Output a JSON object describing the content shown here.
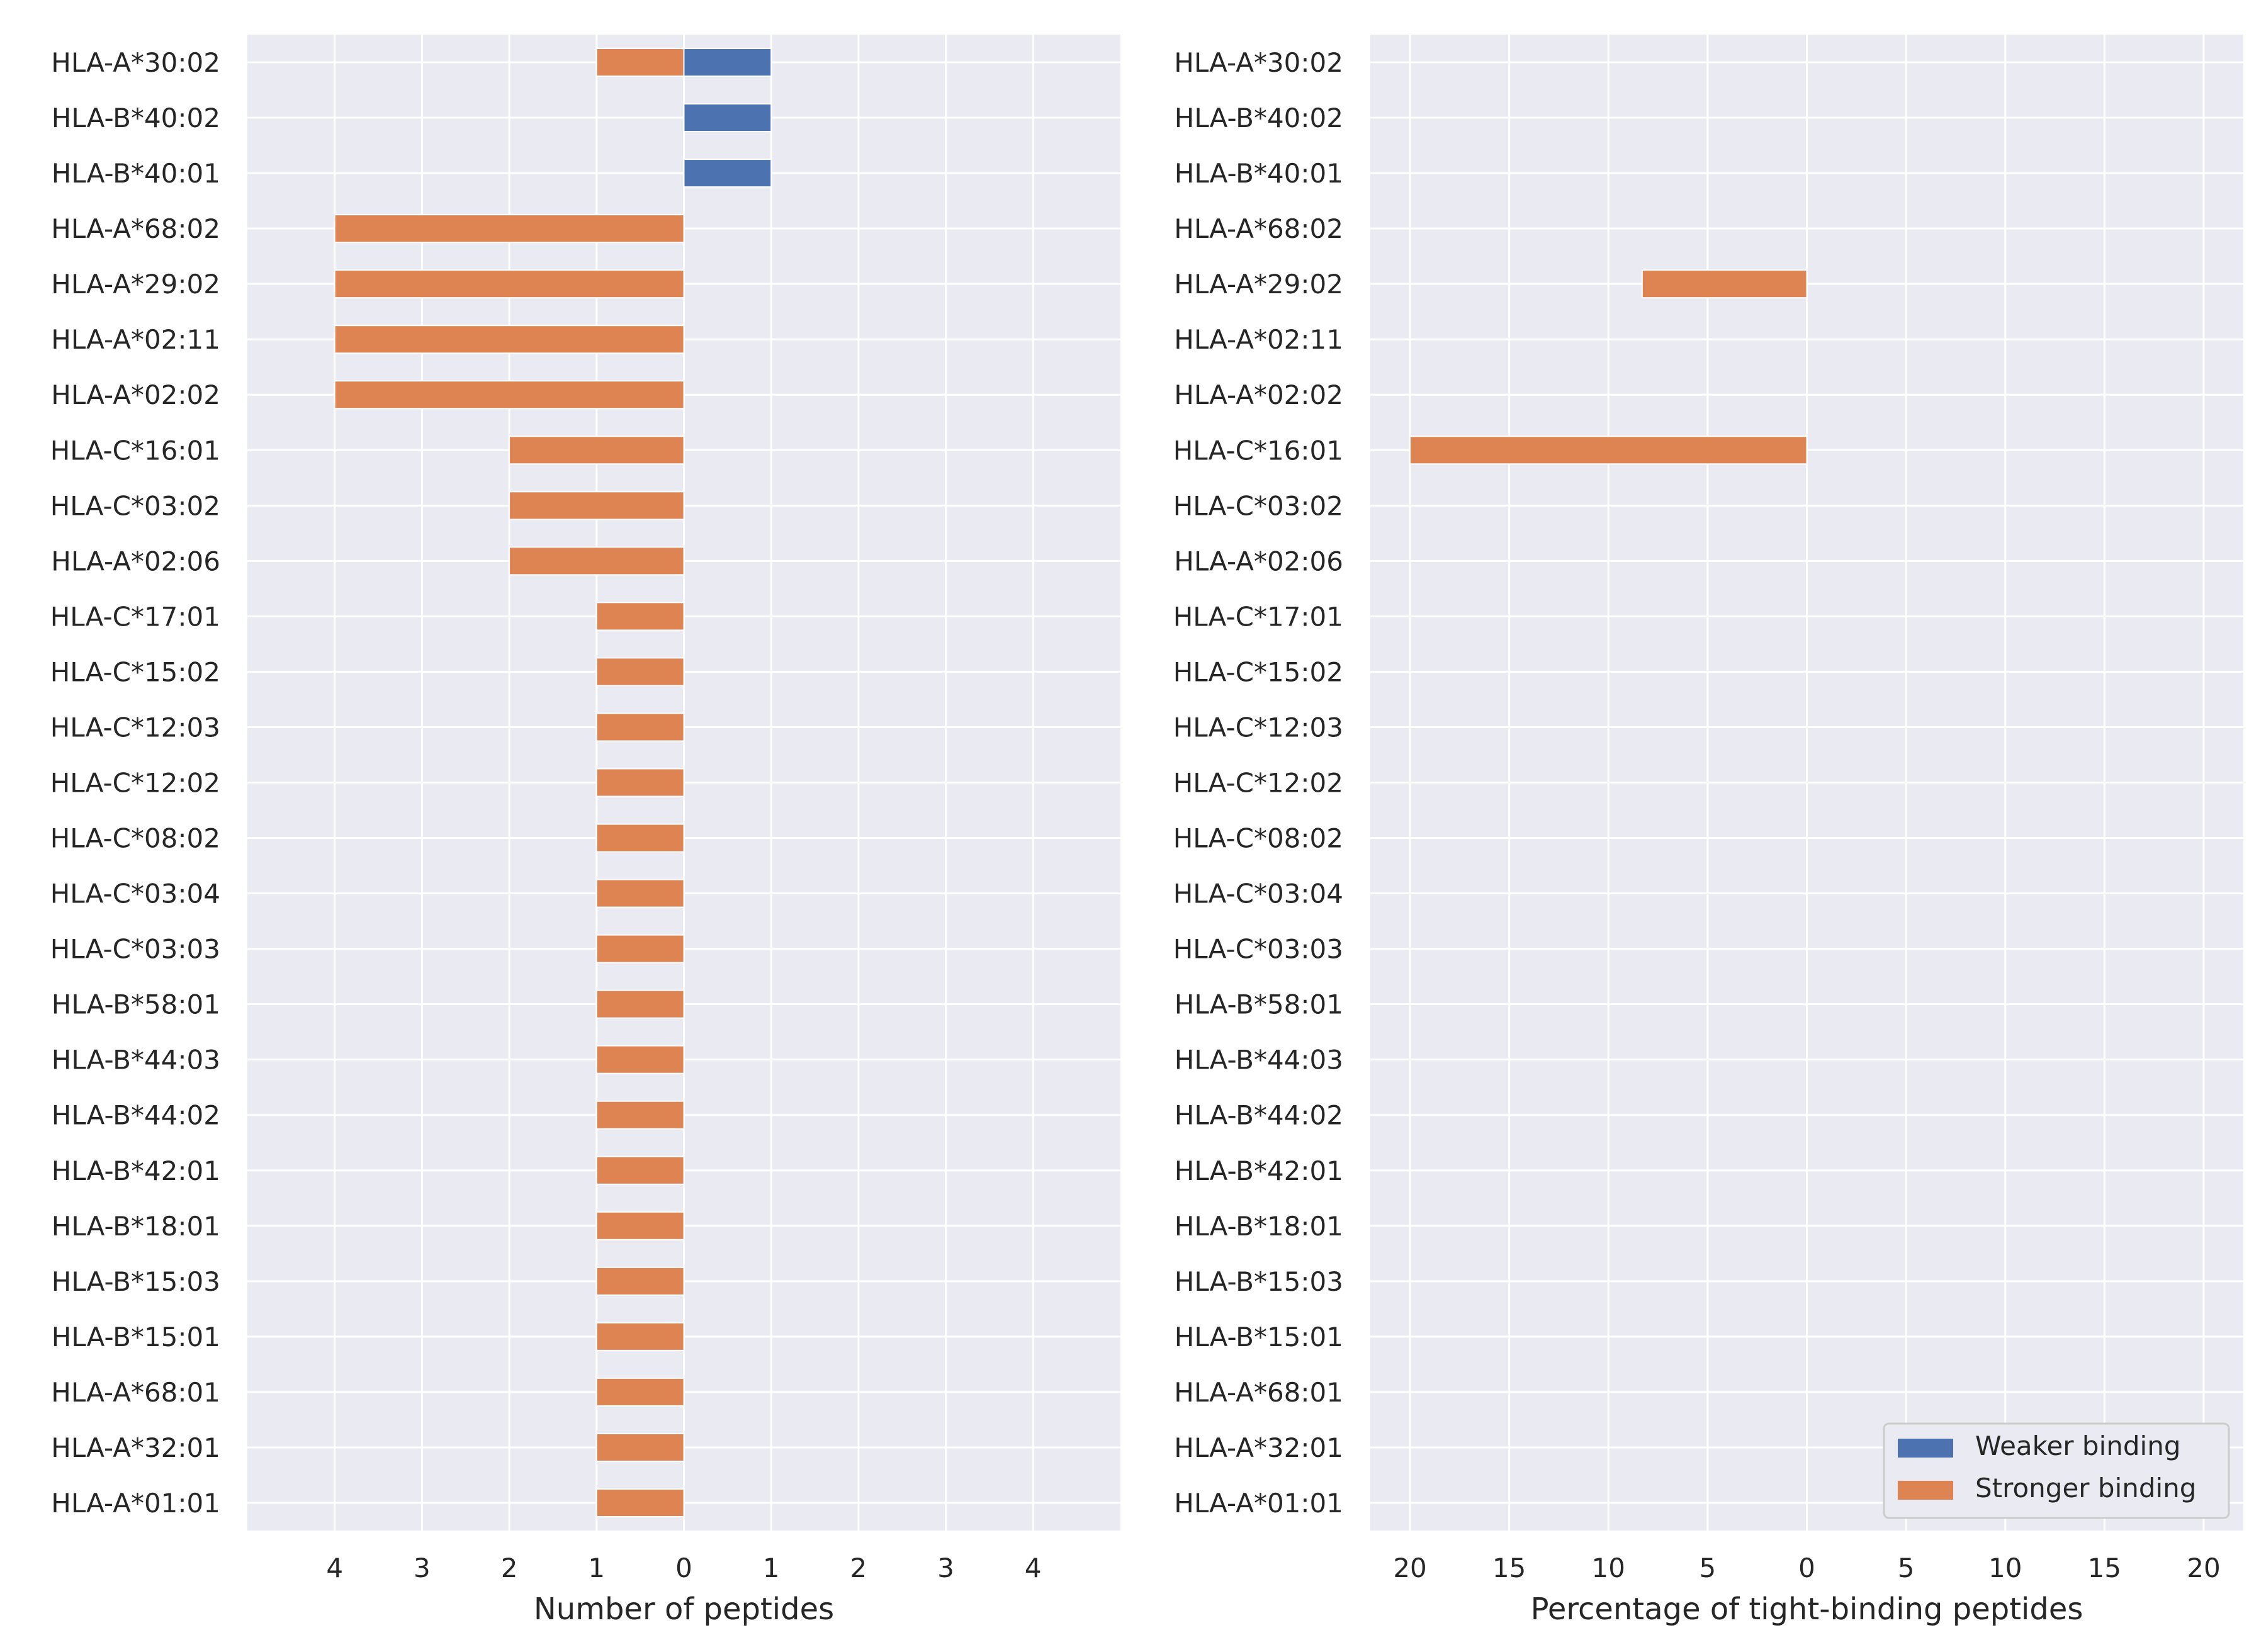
{
  "colors": {
    "weaker": "#4c72b0",
    "stronger": "#dd8452",
    "panel_bg": "#eaeaf2",
    "grid": "#ffffff",
    "text": "#262626"
  },
  "legend": {
    "position": "lower-right of right panel",
    "items": [
      "Weaker binding",
      "Stronger binding"
    ]
  },
  "chart_data": [
    {
      "type": "bar",
      "orientation": "horizontal, diverging",
      "xlabel": "Number of peptides",
      "xlim": [
        -5,
        5
      ],
      "x_ticks": [
        -4,
        -3,
        -2,
        -1,
        0,
        1,
        2,
        3,
        4
      ],
      "x_tick_labels": [
        "4",
        "3",
        "2",
        "1",
        "0",
        "1",
        "2",
        "3",
        "4"
      ],
      "grid": true,
      "categories": [
        "HLA-A*30:02",
        "HLA-B*40:02",
        "HLA-B*40:01",
        "HLA-A*68:02",
        "HLA-A*29:02",
        "HLA-A*02:11",
        "HLA-A*02:02",
        "HLA-C*16:01",
        "HLA-C*03:02",
        "HLA-A*02:06",
        "HLA-C*17:01",
        "HLA-C*15:02",
        "HLA-C*12:03",
        "HLA-C*12:02",
        "HLA-C*08:02",
        "HLA-C*03:04",
        "HLA-C*03:03",
        "HLA-B*58:01",
        "HLA-B*44:03",
        "HLA-B*44:02",
        "HLA-B*42:01",
        "HLA-B*18:01",
        "HLA-B*15:03",
        "HLA-B*15:01",
        "HLA-A*68:01",
        "HLA-A*32:01",
        "HLA-A*01:01"
      ],
      "series": [
        {
          "name": "Weaker binding",
          "direction": "right",
          "values": [
            1,
            1,
            1,
            0,
            0,
            0,
            0,
            0,
            0,
            0,
            0,
            0,
            0,
            0,
            0,
            0,
            0,
            0,
            0,
            0,
            0,
            0,
            0,
            0,
            0,
            0,
            0
          ]
        },
        {
          "name": "Stronger binding",
          "direction": "left",
          "values": [
            1,
            0,
            0,
            4,
            4,
            4,
            4,
            2,
            2,
            2,
            1,
            1,
            1,
            1,
            1,
            1,
            1,
            1,
            1,
            1,
            1,
            1,
            1,
            1,
            1,
            1,
            1
          ]
        }
      ]
    },
    {
      "type": "bar",
      "orientation": "horizontal, diverging",
      "xlabel": "Percentage of tight-binding peptides",
      "xlim": [
        -22,
        22
      ],
      "x_ticks": [
        -20,
        -15,
        -10,
        -5,
        0,
        5,
        10,
        15,
        20
      ],
      "x_tick_labels": [
        "20",
        "15",
        "10",
        "5",
        "0",
        "5",
        "10",
        "15",
        "20"
      ],
      "grid": true,
      "categories": [
        "HLA-A*30:02",
        "HLA-B*40:02",
        "HLA-B*40:01",
        "HLA-A*68:02",
        "HLA-A*29:02",
        "HLA-A*02:11",
        "HLA-A*02:02",
        "HLA-C*16:01",
        "HLA-C*03:02",
        "HLA-A*02:06",
        "HLA-C*17:01",
        "HLA-C*15:02",
        "HLA-C*12:03",
        "HLA-C*12:02",
        "HLA-C*08:02",
        "HLA-C*03:04",
        "HLA-C*03:03",
        "HLA-B*58:01",
        "HLA-B*44:03",
        "HLA-B*44:02",
        "HLA-B*42:01",
        "HLA-B*18:01",
        "HLA-B*15:03",
        "HLA-B*15:01",
        "HLA-A*68:01",
        "HLA-A*32:01",
        "HLA-A*01:01"
      ],
      "series": [
        {
          "name": "Weaker binding",
          "direction": "right",
          "values": [
            0,
            0,
            0,
            0,
            0,
            0,
            0,
            0,
            0,
            0,
            0,
            0,
            0,
            0,
            0,
            0,
            0,
            0,
            0,
            0,
            0,
            0,
            0,
            0,
            0,
            0,
            0
          ]
        },
        {
          "name": "Stronger binding",
          "direction": "left",
          "values": [
            0,
            0,
            0,
            0,
            8.3,
            0,
            0,
            20,
            0,
            0,
            0,
            0,
            0,
            0,
            0,
            0,
            0,
            0,
            0,
            0,
            0,
            0,
            0,
            0,
            0,
            0,
            0
          ]
        }
      ]
    }
  ]
}
